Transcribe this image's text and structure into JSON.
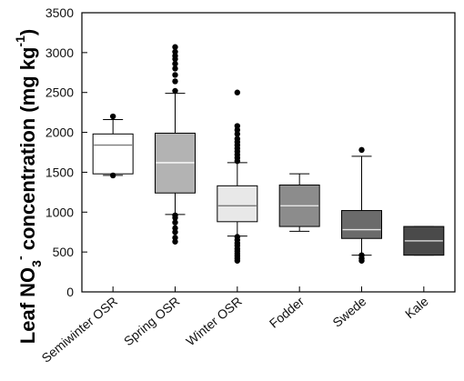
{
  "chart_data": {
    "type": "box",
    "title": "",
    "xlabel": "",
    "ylabel": {
      "prefix": "Leaf NO",
      "sub": "3",
      "sup": "-",
      "middle": " concentration (mg kg",
      "unit_sup": "-1",
      "suffix": ")"
    },
    "ylim": [
      0,
      3500
    ],
    "yticks": [
      0,
      500,
      1000,
      1500,
      2000,
      2500,
      3000,
      3500
    ],
    "grid": false,
    "categories": [
      "Semiwinter OSR",
      "Spring OSR",
      "Winter OSR",
      "Fodder",
      "Swede",
      "Kale"
    ],
    "boxes": [
      {
        "category": "Semiwinter OSR",
        "fill": "#ffffff",
        "median_color": "#7a7a7a",
        "whisker_low": 1460,
        "q1": 1480,
        "median": 1840,
        "q3": 1980,
        "whisker_high": 2160,
        "outliers": [
          1460,
          2200
        ]
      },
      {
        "category": "Spring OSR",
        "fill": "#b3b3b3",
        "median_color": "#ffffff",
        "whisker_low": 970,
        "q1": 1240,
        "median": 1620,
        "q3": 1990,
        "whisker_high": 2490,
        "outliers": [
          630,
          680,
          750,
          800,
          870,
          930,
          960,
          2520,
          2640,
          2720,
          2800,
          2860,
          2920,
          2960,
          3010,
          3070
        ]
      },
      {
        "category": "Winter OSR",
        "fill": "#e8e8e8",
        "median_color": "#7a7a7a",
        "whisker_low": 700,
        "q1": 880,
        "median": 1080,
        "q3": 1330,
        "whisker_high": 1620,
        "outliers": [
          390,
          420,
          450,
          480,
          510,
          540,
          580,
          610,
          650,
          690,
          1640,
          1680,
          1720,
          1760,
          1800,
          1840,
          1880,
          1920,
          1980,
          2030,
          2080,
          2500
        ]
      },
      {
        "category": "Fodder",
        "fill": "#8c8c8c",
        "median_color": "#e6e6e6",
        "whisker_low": 760,
        "q1": 820,
        "median": 1080,
        "q3": 1340,
        "whisker_high": 1480,
        "outliers": []
      },
      {
        "category": "Swede",
        "fill": "#6b6b6b",
        "median_color": "#e6e6e6",
        "whisker_low": 460,
        "q1": 670,
        "median": 780,
        "q3": 1020,
        "whisker_high": 1700,
        "outliers": [
          390,
          420,
          460,
          1780
        ]
      },
      {
        "category": "Kale",
        "fill": "#4a4a4a",
        "median_color": "#cccccc",
        "whisker_low": 460,
        "q1": 460,
        "median": 640,
        "q3": 820,
        "whisker_high": 820,
        "outliers": []
      }
    ]
  }
}
